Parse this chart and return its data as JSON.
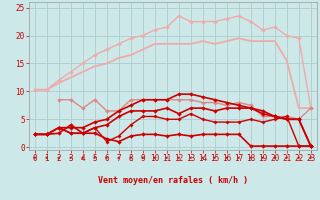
{
  "bg_color": "#cce8e8",
  "grid_color": "#aac8c8",
  "xlabel": "Vent moyen/en rafales ( km/h )",
  "xlim": [
    -0.5,
    23.5
  ],
  "ylim": [
    -0.5,
    26
  ],
  "yticks": [
    0,
    5,
    10,
    15,
    20,
    25
  ],
  "xticks": [
    0,
    1,
    2,
    3,
    4,
    5,
    6,
    7,
    8,
    9,
    10,
    11,
    12,
    13,
    14,
    15,
    16,
    17,
    18,
    19,
    20,
    21,
    22,
    23
  ],
  "series": [
    {
      "x": [
        0,
        1,
        2,
        3,
        4,
        5,
        6,
        7,
        8,
        9,
        10,
        11,
        12,
        13,
        14,
        15,
        16,
        17,
        18,
        19,
        20,
        21,
        22,
        23
      ],
      "y": [
        10.3,
        10.3,
        11.5,
        12.5,
        13.5,
        14.5,
        15.0,
        16.0,
        16.5,
        17.5,
        18.5,
        18.5,
        18.5,
        18.5,
        19.0,
        18.5,
        19.0,
        19.5,
        19.0,
        19.0,
        19.0,
        15.5,
        7.0,
        7.0
      ],
      "color": "#f0aaaa",
      "lw": 1.3,
      "marker": null,
      "ms": 0
    },
    {
      "x": [
        0,
        1,
        2,
        3,
        4,
        5,
        6,
        7,
        8,
        9,
        10,
        11,
        12,
        13,
        14,
        15,
        16,
        17,
        18,
        19,
        20,
        21,
        22,
        23
      ],
      "y": [
        10.3,
        10.3,
        12.0,
        13.5,
        15.0,
        16.5,
        17.5,
        18.5,
        19.5,
        20.0,
        21.0,
        21.5,
        23.5,
        22.5,
        22.5,
        22.5,
        23.0,
        23.5,
        22.5,
        21.0,
        21.5,
        20.0,
        19.5,
        7.0
      ],
      "color": "#f0aaaa",
      "lw": 1.0,
      "marker": "D",
      "ms": 2.0
    },
    {
      "x": [
        2,
        3,
        4,
        5,
        6,
        7,
        8,
        9,
        10,
        11,
        12,
        13,
        14,
        15,
        16,
        17,
        18,
        19,
        20,
        21,
        22,
        23
      ],
      "y": [
        8.5,
        8.5,
        7.0,
        8.5,
        6.5,
        6.5,
        8.5,
        8.5,
        8.5,
        8.5,
        8.5,
        8.5,
        8.0,
        8.0,
        7.5,
        8.0,
        7.5,
        5.5,
        5.5,
        5.5,
        5.0,
        7.0
      ],
      "color": "#dd8888",
      "lw": 1.0,
      "marker": "D",
      "ms": 2.0
    },
    {
      "x": [
        0,
        1,
        2,
        3,
        4,
        5,
        6,
        7,
        8,
        9,
        10,
        11,
        12,
        13,
        14,
        15,
        16,
        17,
        18,
        19,
        20,
        21,
        22,
        23
      ],
      "y": [
        2.3,
        2.3,
        2.5,
        4.0,
        2.5,
        2.5,
        1.5,
        1.0,
        2.0,
        2.3,
        2.3,
        2.0,
        2.3,
        2.0,
        2.3,
        2.3,
        2.3,
        2.3,
        0.2,
        0.2,
        0.2,
        0.2,
        0.2,
        0.2
      ],
      "color": "#cc0000",
      "lw": 1.2,
      "marker": "D",
      "ms": 2.0
    },
    {
      "x": [
        0,
        1,
        2,
        3,
        4,
        5,
        6,
        7,
        8,
        9,
        10,
        11,
        12,
        13,
        14,
        15,
        16,
        17,
        18,
        19,
        20,
        21,
        22,
        23
      ],
      "y": [
        2.3,
        2.3,
        3.5,
        2.5,
        2.5,
        3.5,
        4.0,
        5.5,
        6.5,
        6.5,
        6.5,
        7.0,
        6.0,
        7.0,
        7.0,
        6.5,
        7.0,
        7.0,
        7.0,
        6.0,
        5.5,
        5.0,
        5.0,
        0.2
      ],
      "color": "#cc0000",
      "lw": 1.2,
      "marker": "D",
      "ms": 2.0
    },
    {
      "x": [
        0,
        1,
        2,
        3,
        4,
        5,
        6,
        7,
        8,
        9,
        10,
        11,
        12,
        13,
        14,
        15,
        16,
        17,
        18,
        19,
        20,
        21,
        22,
        23
      ],
      "y": [
        2.3,
        2.3,
        3.5,
        3.5,
        3.5,
        4.5,
        5.0,
        6.5,
        7.5,
        8.5,
        8.5,
        8.5,
        9.5,
        9.5,
        9.0,
        8.5,
        8.0,
        7.5,
        7.0,
        6.5,
        5.5,
        5.0,
        5.0,
        0.2
      ],
      "color": "#cc0000",
      "lw": 1.2,
      "marker": "D",
      "ms": 2.0
    },
    {
      "x": [
        2,
        3,
        4,
        5,
        6,
        7,
        8,
        9,
        10,
        11,
        12,
        13,
        14,
        15,
        16,
        17,
        18,
        19,
        20,
        21,
        22,
        23
      ],
      "y": [
        3.5,
        2.5,
        2.5,
        3.5,
        1.0,
        2.0,
        4.0,
        5.5,
        5.5,
        5.0,
        5.0,
        6.0,
        5.0,
        4.5,
        4.5,
        4.5,
        5.0,
        4.5,
        5.0,
        5.5,
        0.2,
        0.2
      ],
      "color": "#cc0000",
      "lw": 1.0,
      "marker": "D",
      "ms": 1.8
    }
  ],
  "arrow_color": "#cc0000",
  "tick_color": "#cc0000",
  "label_fontsize": 6.0,
  "tick_fontsize": 5.5
}
